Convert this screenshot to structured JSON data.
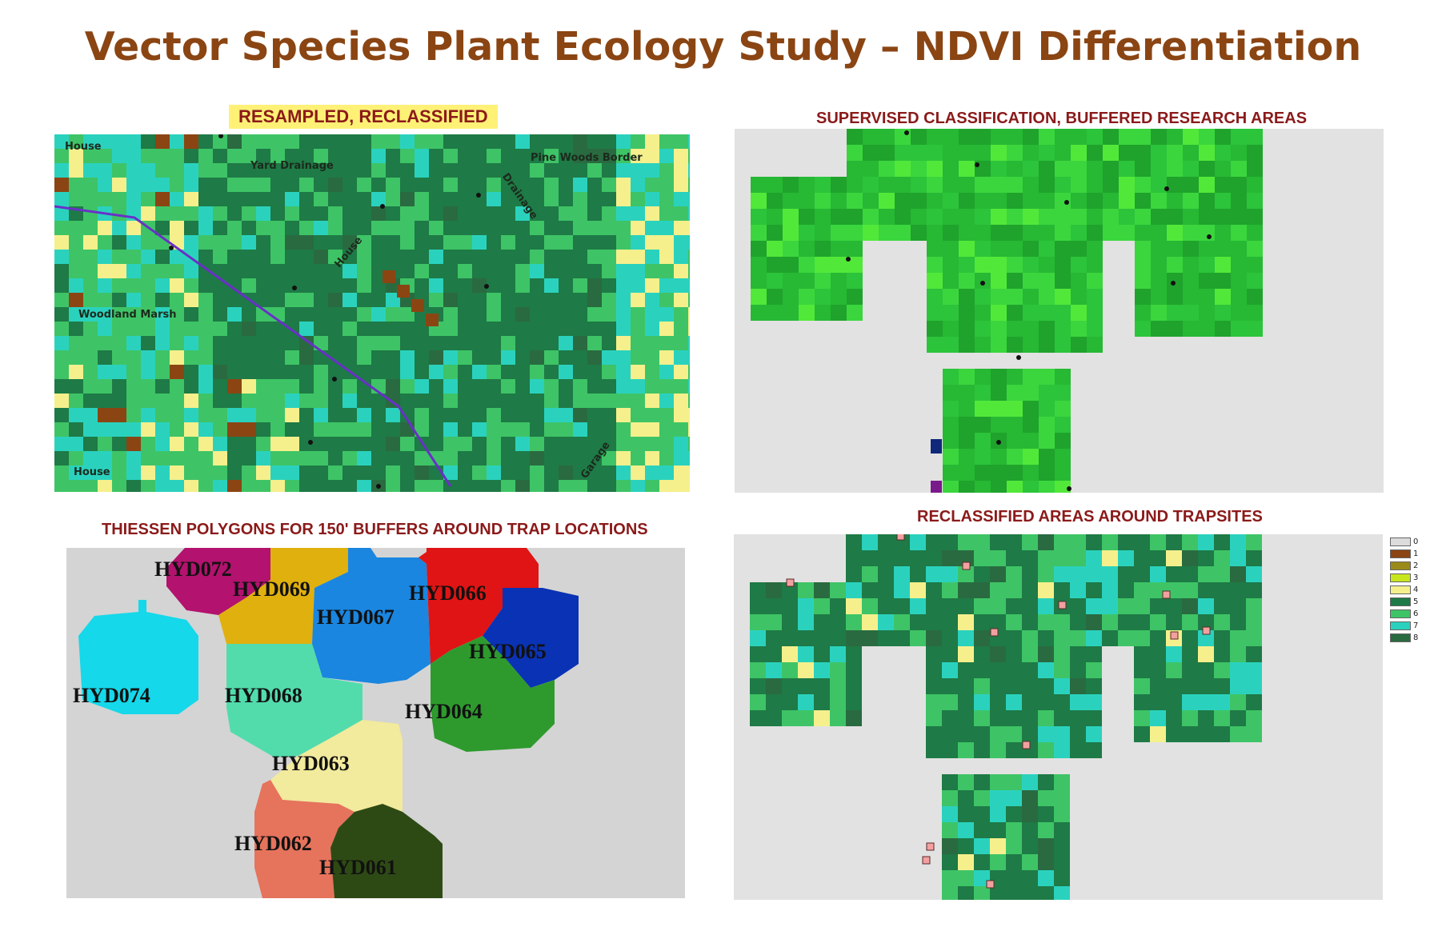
{
  "title": "Vector Species Plant Ecology Study – NDVI Differentiation",
  "panels": {
    "resampled": {
      "title": "RESAMPLED, RECLASSIFIED",
      "labels": {
        "house_top": "House",
        "yard_drainage": "Yard Drainage",
        "pine_woods": "Pine Woods Border",
        "drainage": "Drainage",
        "house_mid": "House",
        "woodland_marsh": "Woodland Marsh",
        "house_bottom": "House",
        "garage": "Garage"
      }
    },
    "supervised": {
      "title": "SUPERVISED CLASSIFICATION, BUFFERED RESEARCH AREAS"
    },
    "thiessen": {
      "title": "THIESSEN POLYGONS FOR 150' BUFFERS AROUND TRAP LOCATIONS",
      "polygons": [
        {
          "id": "HYD072",
          "color": "#b3126e"
        },
        {
          "id": "HYD069",
          "color": "#e0b00e"
        },
        {
          "id": "HYD067",
          "color": "#1a86e0"
        },
        {
          "id": "HYD066",
          "color": "#e01414"
        },
        {
          "id": "HYD065",
          "color": "#0a32b4"
        },
        {
          "id": "HYD074",
          "color": "#15d8ea"
        },
        {
          "id": "HYD068",
          "color": "#52dcac"
        },
        {
          "id": "HYD064",
          "color": "#2e9a2e"
        },
        {
          "id": "HYD063",
          "color": "#f2ea9c"
        },
        {
          "id": "HYD062",
          "color": "#e6735c"
        },
        {
          "id": "HYD061",
          "color": "#2e4a14"
        }
      ]
    },
    "trapsites": {
      "title": "RECLASSIFIED AREAS AROUND TRAPSITES",
      "legend": [
        {
          "label": "0",
          "color": "#dcdcdc"
        },
        {
          "label": "1",
          "color": "#8b4513"
        },
        {
          "label": "2",
          "color": "#9a8a1a"
        },
        {
          "label": "3",
          "color": "#c8e61e"
        },
        {
          "label": "4",
          "color": "#f5f08c"
        },
        {
          "label": "5",
          "color": "#1e7a46"
        },
        {
          "label": "6",
          "color": "#3ec466"
        },
        {
          "label": "7",
          "color": "#2ad2be"
        },
        {
          "label": "8",
          "color": "#2a6a40"
        }
      ]
    }
  }
}
